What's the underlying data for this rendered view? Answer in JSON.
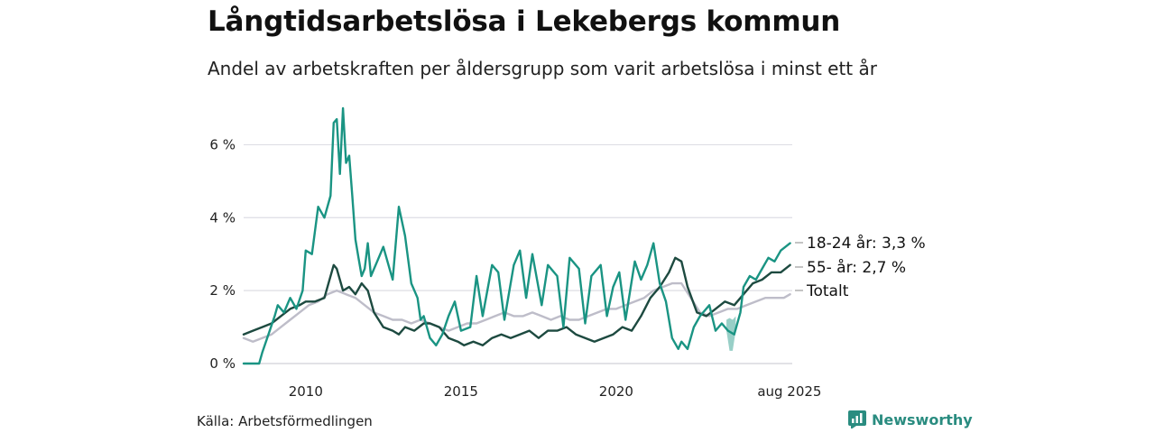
{
  "title": "Långtidsarbetslösa i Lekebergs kommun",
  "subtitle": "Andel av arbetskraften per åldersgrupp som varit arbetslösa i minst ett år",
  "source": "Källa: Arbetsförmedlingen",
  "brand": {
    "name": "Newsworthy",
    "icon": "newsworthy-logo-icon",
    "color": "#2a8c80"
  },
  "chart_data": {
    "type": "line",
    "title": "Långtidsarbetslösa i Lekebergs kommun",
    "subtitle": "Andel av arbetskraften per åldersgrupp som varit arbetslösa i minst ett år",
    "xlim": [
      2008.0,
      2025.67
    ],
    "ylim": [
      0,
      7
    ],
    "y_ticks": [
      0,
      2,
      4,
      6
    ],
    "y_tick_labels": [
      "0 %",
      "2 %",
      "4 %",
      "6 %"
    ],
    "x_ticks": [
      2010,
      2015,
      2020,
      2025.58
    ],
    "x_tick_labels": [
      "2010",
      "2015",
      "2020",
      "aug 2025"
    ],
    "grid": "horizontal",
    "series": [
      {
        "name": "18-24 år",
        "end_label": "18-24 år: 3,3 %",
        "color": "#1a9483",
        "x": [
          2008.0,
          2008.5,
          2008.6,
          2008.8,
          2009.0,
          2009.1,
          2009.3,
          2009.5,
          2009.7,
          2009.9,
          2010.0,
          2010.2,
          2010.4,
          2010.6,
          2010.8,
          2010.9,
          2011.0,
          2011.1,
          2011.2,
          2011.3,
          2011.4,
          2011.5,
          2011.6,
          2011.7,
          2011.8,
          2011.9,
          2012.0,
          2012.1,
          2012.3,
          2012.5,
          2012.7,
          2012.8,
          2013.0,
          2013.2,
          2013.4,
          2013.6,
          2013.7,
          2013.8,
          2014.0,
          2014.2,
          2014.4,
          2014.6,
          2014.8,
          2015.0,
          2015.3,
          2015.5,
          2015.7,
          2016.0,
          2016.2,
          2016.4,
          2016.7,
          2016.9,
          2017.1,
          2017.3,
          2017.6,
          2017.8,
          2018.1,
          2018.3,
          2018.5,
          2018.8,
          2019.0,
          2019.2,
          2019.5,
          2019.7,
          2019.9,
          2020.1,
          2020.3,
          2020.6,
          2020.8,
          2021.0,
          2021.2,
          2021.4,
          2021.6,
          2021.8,
          2022.0,
          2022.1,
          2022.3,
          2022.5,
          2022.7,
          2023.0,
          2023.2,
          2023.4,
          2023.6,
          2023.8,
          2024.0,
          2024.1,
          2024.3,
          2024.5,
          2024.7,
          2024.9,
          2025.1,
          2025.3,
          2025.6
        ],
        "y": [
          0,
          0,
          0.3,
          0.8,
          1.3,
          1.6,
          1.4,
          1.8,
          1.5,
          2.0,
          3.1,
          3.0,
          4.3,
          4.0,
          4.6,
          6.6,
          6.7,
          5.2,
          7.0,
          5.5,
          5.7,
          4.6,
          3.4,
          2.9,
          2.4,
          2.6,
          3.3,
          2.4,
          2.8,
          3.2,
          2.6,
          2.3,
          4.3,
          3.5,
          2.2,
          1.8,
          1.2,
          1.3,
          0.7,
          0.5,
          0.8,
          1.3,
          1.7,
          0.9,
          1.0,
          2.4,
          1.3,
          2.7,
          2.5,
          1.2,
          2.7,
          3.1,
          1.8,
          3.0,
          1.6,
          2.7,
          2.4,
          1.0,
          2.9,
          2.6,
          1.1,
          2.4,
          2.7,
          1.3,
          2.1,
          2.5,
          1.2,
          2.8,
          2.3,
          2.7,
          3.3,
          2.2,
          1.7,
          0.7,
          0.4,
          0.6,
          0.4,
          1.0,
          1.3,
          1.6,
          0.9,
          1.1,
          0.9,
          0.8,
          1.4,
          2.1,
          2.4,
          2.3,
          2.6,
          2.9,
          2.8,
          3.1,
          3.3
        ]
      },
      {
        "name": "55- år",
        "end_label": "55- år: 2,7 %",
        "color": "#1d4a40",
        "x": [
          2008.0,
          2008.3,
          2008.6,
          2008.9,
          2009.2,
          2009.5,
          2009.8,
          2010.0,
          2010.3,
          2010.6,
          2010.9,
          2011.0,
          2011.2,
          2011.4,
          2011.6,
          2011.8,
          2012.0,
          2012.2,
          2012.5,
          2012.8,
          2013.0,
          2013.2,
          2013.5,
          2013.8,
          2014.0,
          2014.3,
          2014.6,
          2014.9,
          2015.1,
          2015.4,
          2015.7,
          2016.0,
          2016.3,
          2016.6,
          2016.9,
          2017.2,
          2017.5,
          2017.8,
          2018.1,
          2018.4,
          2018.7,
          2019.0,
          2019.3,
          2019.6,
          2019.9,
          2020.2,
          2020.5,
          2020.8,
          2021.1,
          2021.4,
          2021.7,
          2021.9,
          2022.1,
          2022.3,
          2022.6,
          2022.9,
          2023.2,
          2023.5,
          2023.8,
          2024.1,
          2024.4,
          2024.7,
          2025.0,
          2025.3,
          2025.6
        ],
        "y": [
          0.8,
          0.9,
          1.0,
          1.1,
          1.3,
          1.5,
          1.6,
          1.7,
          1.7,
          1.8,
          2.7,
          2.6,
          2.0,
          2.1,
          1.9,
          2.2,
          2.0,
          1.4,
          1.0,
          0.9,
          0.8,
          1.0,
          0.9,
          1.1,
          1.1,
          1.0,
          0.7,
          0.6,
          0.5,
          0.6,
          0.5,
          0.7,
          0.8,
          0.7,
          0.8,
          0.9,
          0.7,
          0.9,
          0.9,
          1.0,
          0.8,
          0.7,
          0.6,
          0.7,
          0.8,
          1.0,
          0.9,
          1.3,
          1.8,
          2.1,
          2.5,
          2.9,
          2.8,
          2.1,
          1.4,
          1.3,
          1.5,
          1.7,
          1.6,
          1.9,
          2.2,
          2.3,
          2.5,
          2.5,
          2.7
        ]
      },
      {
        "name": "Totalt",
        "end_label": "Totalt",
        "color": "#bebdc9",
        "x": [
          2008.0,
          2008.3,
          2008.6,
          2008.9,
          2009.2,
          2009.5,
          2009.8,
          2010.1,
          2010.4,
          2010.7,
          2011.0,
          2011.3,
          2011.6,
          2011.9,
          2012.2,
          2012.5,
          2012.8,
          2013.1,
          2013.4,
          2013.7,
          2014.0,
          2014.3,
          2014.6,
          2014.9,
          2015.2,
          2015.5,
          2015.8,
          2016.1,
          2016.4,
          2016.7,
          2017.0,
          2017.3,
          2017.6,
          2017.9,
          2018.2,
          2018.5,
          2018.8,
          2019.1,
          2019.4,
          2019.7,
          2020.0,
          2020.3,
          2020.6,
          2020.9,
          2021.2,
          2021.5,
          2021.8,
          2022.1,
          2022.4,
          2022.7,
          2023.0,
          2023.3,
          2023.6,
          2023.9,
          2024.2,
          2024.5,
          2024.8,
          2025.1,
          2025.4,
          2025.6
        ],
        "y": [
          0.7,
          0.6,
          0.7,
          0.8,
          1.0,
          1.2,
          1.4,
          1.6,
          1.7,
          1.9,
          2.0,
          1.9,
          1.8,
          1.6,
          1.4,
          1.3,
          1.2,
          1.2,
          1.1,
          1.2,
          1.1,
          1.0,
          0.9,
          1.0,
          1.1,
          1.1,
          1.2,
          1.3,
          1.4,
          1.3,
          1.3,
          1.4,
          1.3,
          1.2,
          1.3,
          1.2,
          1.2,
          1.3,
          1.4,
          1.5,
          1.5,
          1.6,
          1.7,
          1.8,
          2.0,
          2.1,
          2.2,
          2.2,
          1.8,
          1.4,
          1.3,
          1.4,
          1.5,
          1.5,
          1.6,
          1.7,
          1.8,
          1.8,
          1.8,
          1.9
        ]
      }
    ],
    "band": {
      "series": "18-24 år",
      "color": "#1a9483",
      "x": [
        2023.55,
        2023.65,
        2023.75,
        2023.85
      ],
      "y_low": [
        0.9,
        0.35,
        0.35,
        0.9
      ],
      "y_high": [
        1.2,
        1.25,
        1.2,
        1.3
      ]
    }
  }
}
